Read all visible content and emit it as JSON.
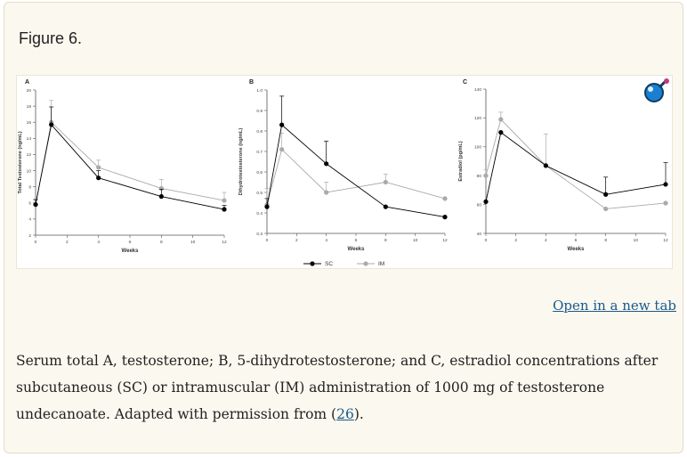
{
  "figure": {
    "title": "Figure 6.",
    "open_link": "Open in a new tab",
    "caption_before": "Serum total A, testosterone; B, 5-dihydrotestosterone; and C, estradiol concentrations after subcutaneous (SC) or intramuscular (IM) administration of 1000 mg of testosterone undecanoate. Adapted with permission from (",
    "caption_ref": "26",
    "caption_after": ").",
    "zoom_icon": "magnifier-icon"
  },
  "colors": {
    "sc": "#000000",
    "im": "#aaaaaa",
    "axis": "#555555",
    "link": "#1a5a8c"
  },
  "legend": [
    {
      "name": "SC",
      "color": "#000000"
    },
    {
      "name": "IM",
      "color": "#aaaaaa"
    }
  ],
  "chart_data": [
    {
      "type": "line",
      "panel_label": "A",
      "xlabel": "Weeks",
      "ylabel": "Total Testosterone (ng/mL)",
      "xlim": [
        0,
        12
      ],
      "ylim": [
        2,
        20
      ],
      "xticks": [
        0,
        2,
        4,
        6,
        8,
        10,
        12
      ],
      "yticks": [
        2,
        4,
        6,
        8,
        10,
        12,
        14,
        16,
        18,
        20
      ],
      "series": [
        {
          "name": "SC",
          "x": [
            0,
            1,
            4,
            8,
            12
          ],
          "y": [
            5.8,
            15.7,
            9.1,
            6.8,
            5.2
          ],
          "err": [
            0.6,
            2.2,
            0.9,
            0.9,
            0.5
          ]
        },
        {
          "name": "IM",
          "x": [
            0,
            1,
            4,
            8,
            12
          ],
          "y": [
            5.8,
            16.0,
            10.4,
            7.8,
            6.3
          ],
          "err": [
            0.7,
            2.7,
            0.9,
            1.1,
            1.0
          ]
        }
      ]
    },
    {
      "type": "line",
      "panel_label": "B",
      "xlabel": "Weeks",
      "ylabel": "Dihydrotestosterone (ng/mL)",
      "xlim": [
        0,
        12
      ],
      "ylim": [
        0.3,
        1.0
      ],
      "xticks": [
        0,
        2,
        4,
        6,
        8,
        10,
        12
      ],
      "yticks": [
        0.3,
        0.4,
        0.5,
        0.6,
        0.7,
        0.8,
        0.9,
        1.0
      ],
      "series": [
        {
          "name": "SC",
          "x": [
            0,
            1,
            4,
            8,
            12
          ],
          "y": [
            0.43,
            0.83,
            0.64,
            0.43,
            0.38
          ],
          "err": [
            0.04,
            0.14,
            0.11,
            0.0,
            0.0
          ]
        },
        {
          "name": "IM",
          "x": [
            0,
            1,
            4,
            8,
            12
          ],
          "y": [
            0.44,
            0.71,
            0.5,
            0.55,
            0.47
          ],
          "err": [
            0.08,
            0.08,
            0.05,
            0.04,
            0.0
          ]
        }
      ]
    },
    {
      "type": "line",
      "panel_label": "C",
      "xlabel": "Weeks",
      "ylabel": "Estradiol (pg/mL)",
      "xlim": [
        0,
        12
      ],
      "ylim": [
        40,
        140
      ],
      "xticks": [
        0,
        2,
        4,
        6,
        8,
        10,
        12
      ],
      "yticks": [
        40,
        60,
        80,
        100,
        120,
        140
      ],
      "series": [
        {
          "name": "SC",
          "x": [
            0,
            1,
            4,
            8,
            12
          ],
          "y": [
            62,
            110,
            87,
            67,
            74
          ],
          "err": [
            0,
            0,
            0,
            12,
            15
          ]
        },
        {
          "name": "IM",
          "x": [
            0,
            1,
            4,
            8,
            12
          ],
          "y": [
            80,
            119,
            87,
            57,
            61
          ],
          "err": [
            4,
            5,
            22,
            0,
            0
          ]
        }
      ]
    }
  ]
}
